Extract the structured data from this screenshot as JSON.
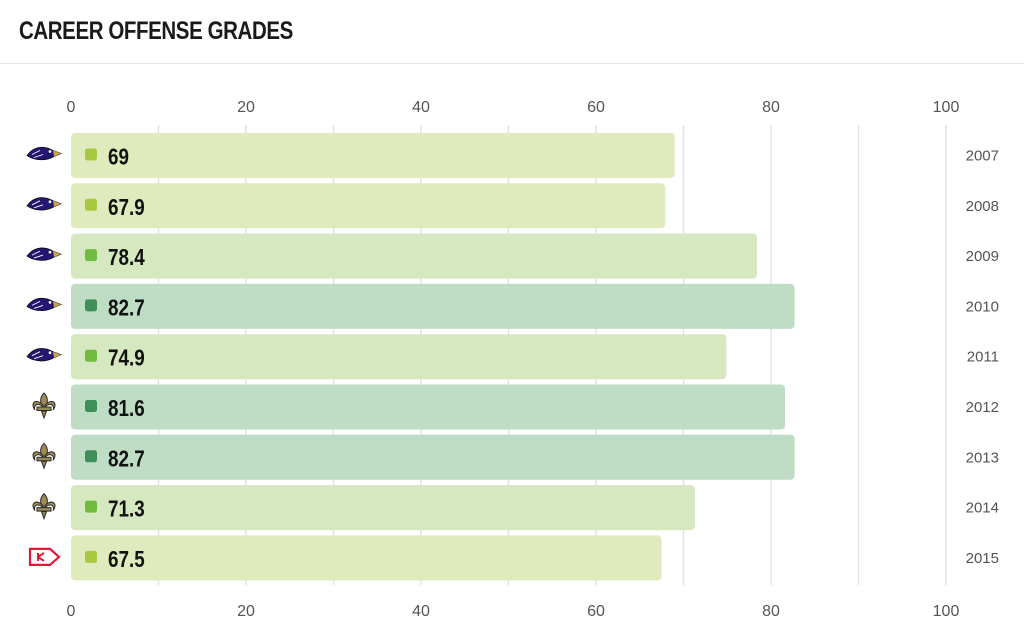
{
  "page": {
    "title": "CAREER OFFENSE GRADES"
  },
  "team_logos": {
    "ravens": "ravens-logo-icon",
    "saints": "saints-fleur-de-lis-icon",
    "chiefs": "chiefs-arrowhead-icon"
  },
  "grade_colors": {
    "60-69.9": {
      "bar": "#dfeabd",
      "dot": "#a7c93f"
    },
    "70-79.9": {
      "bar": "#d5e8bf",
      "dot": "#6fba3f"
    },
    "80+": {
      "bar": "#bfdcc5",
      "dot": "#3e8f5a"
    }
  },
  "chart_data": {
    "type": "bar",
    "orientation": "horizontal",
    "title": "CAREER OFFENSE GRADES",
    "xlim": [
      0,
      100
    ],
    "x_ticks": [
      0,
      20,
      40,
      60,
      80,
      100
    ],
    "tick_positions": [
      "top",
      "bottom"
    ],
    "grid": true,
    "categories": [
      "2007",
      "2008",
      "2009",
      "2010",
      "2011",
      "2012",
      "2013",
      "2014",
      "2015"
    ],
    "values": [
      69,
      67.9,
      78.4,
      82.7,
      74.9,
      81.6,
      82.7,
      71.3,
      67.5
    ],
    "value_labels": [
      "69",
      "67.9",
      "78.4",
      "82.7",
      "74.9",
      "81.6",
      "82.7",
      "71.3",
      "67.5"
    ],
    "teams": [
      "ravens",
      "ravens",
      "ravens",
      "ravens",
      "ravens",
      "saints",
      "saints",
      "saints",
      "chiefs"
    ],
    "bar_colors": [
      "#dfeabd",
      "#dfeabd",
      "#d5e8bf",
      "#bfdcc5",
      "#d5e8bf",
      "#bfdcc5",
      "#bfdcc5",
      "#d5e8bf",
      "#dfeabd"
    ],
    "dot_colors": [
      "#a7c93f",
      "#a7c93f",
      "#6fba3f",
      "#3e8f5a",
      "#6fba3f",
      "#3e8f5a",
      "#3e8f5a",
      "#6fba3f",
      "#a7c93f"
    ]
  }
}
